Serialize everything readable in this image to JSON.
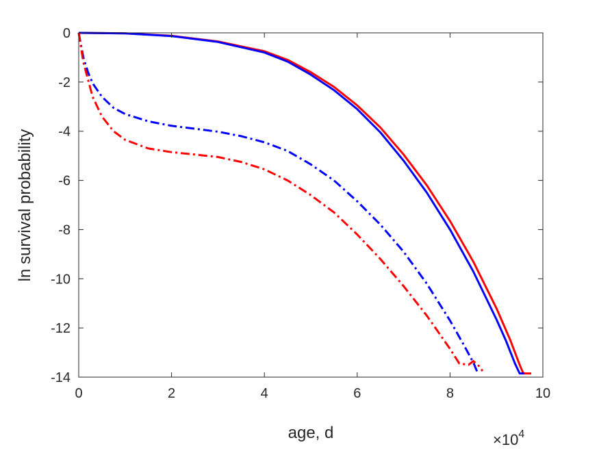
{
  "chart_data": {
    "type": "line",
    "title": "",
    "xlabel": "age, d",
    "ylabel": "ln survival probability",
    "x_multiplier": {
      "base": "×10",
      "exponent": "4"
    },
    "xlim": [
      0,
      10
    ],
    "ylim": [
      -14,
      0
    ],
    "xticks": [
      0,
      2,
      4,
      6,
      8,
      10
    ],
    "yticks": [
      0,
      -2,
      -4,
      -6,
      -8,
      -10,
      -12,
      -14
    ],
    "xtick_labels": [
      "0",
      "2",
      "4",
      "6",
      "8",
      "10"
    ],
    "ytick_labels": [
      "0",
      "-2",
      "-4",
      "-6",
      "-8",
      "-10",
      "-12",
      "-14"
    ],
    "grid": false,
    "legend": "none",
    "series": [
      {
        "color": "#ff0000",
        "style": "solid",
        "x": [
          0,
          1,
          2,
          3,
          4,
          4.5,
          5,
          5.5,
          6,
          6.5,
          7,
          7.5,
          8,
          8.5,
          9,
          9.3,
          9.5,
          9.58,
          9.75
        ],
        "y": [
          0,
          -0.02,
          -0.12,
          -0.35,
          -0.75,
          -1.1,
          -1.6,
          -2.2,
          -2.95,
          -3.85,
          -4.95,
          -6.2,
          -7.65,
          -9.3,
          -11.2,
          -12.5,
          -13.5,
          -13.85,
          -13.85
        ]
      },
      {
        "color": "#0000ff",
        "style": "solid",
        "x": [
          0,
          1,
          2,
          3,
          4,
          4.5,
          5,
          5.5,
          6,
          6.5,
          7,
          7.5,
          8,
          8.5,
          9,
          9.2,
          9.4,
          9.5,
          9.6
        ],
        "y": [
          0,
          -0.02,
          -0.13,
          -0.37,
          -0.8,
          -1.17,
          -1.7,
          -2.33,
          -3.1,
          -4.05,
          -5.2,
          -6.5,
          -8.0,
          -9.7,
          -11.65,
          -12.5,
          -13.45,
          -13.85,
          -13.85
        ]
      },
      {
        "color": "#0000ff",
        "style": "dashdot",
        "x": [
          0,
          0.05,
          0.1,
          0.2,
          0.3,
          0.5,
          0.75,
          1,
          1.5,
          2,
          2.5,
          3,
          3.5,
          4,
          4.5,
          5,
          5.5,
          6,
          6.5,
          7,
          7.5,
          8,
          8.3,
          8.5,
          8.6
        ],
        "y": [
          0,
          -0.5,
          -1.0,
          -1.6,
          -2.05,
          -2.6,
          -3.05,
          -3.3,
          -3.6,
          -3.78,
          -3.9,
          -4.02,
          -4.2,
          -4.45,
          -4.8,
          -5.35,
          -6.0,
          -6.85,
          -7.8,
          -8.9,
          -10.2,
          -11.7,
          -12.7,
          -13.4,
          -13.85
        ]
      },
      {
        "color": "#ff0000",
        "style": "dashdot",
        "x": [
          0,
          0.05,
          0.1,
          0.2,
          0.3,
          0.5,
          0.75,
          1,
          1.5,
          2,
          2.5,
          3,
          3.5,
          4,
          4.5,
          5,
          5.5,
          6,
          6.5,
          7,
          7.5,
          8,
          8.2,
          8.4,
          8.5,
          8.6,
          8.7
        ],
        "y": [
          0,
          -0.6,
          -1.2,
          -1.9,
          -2.6,
          -3.4,
          -4.0,
          -4.35,
          -4.7,
          -4.85,
          -4.95,
          -5.05,
          -5.25,
          -5.55,
          -6.0,
          -6.6,
          -7.3,
          -8.2,
          -9.2,
          -10.3,
          -11.5,
          -12.85,
          -13.45,
          -13.5,
          -13.35,
          -13.5,
          -13.75
        ]
      }
    ]
  }
}
